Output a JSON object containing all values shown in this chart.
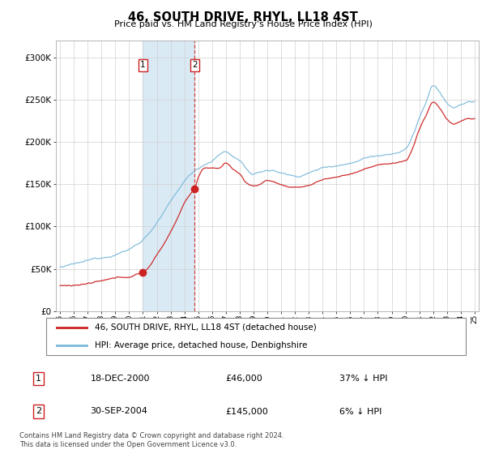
{
  "title": "46, SOUTH DRIVE, RHYL, LL18 4ST",
  "subtitle": "Price paid vs. HM Land Registry's House Price Index (HPI)",
  "legend_line1": "46, SOUTH DRIVE, RHYL, LL18 4ST (detached house)",
  "legend_line2": "HPI: Average price, detached house, Denbighshire",
  "transaction1_label": "1",
  "transaction1_date": "18-DEC-2000",
  "transaction1_price": "£46,000",
  "transaction1_hpi": "37% ↓ HPI",
  "transaction2_label": "2",
  "transaction2_date": "30-SEP-2004",
  "transaction2_price": "£145,000",
  "transaction2_hpi": "6% ↓ HPI",
  "footer": "Contains HM Land Registry data © Crown copyright and database right 2024.\nThis data is licensed under the Open Government Licence v3.0.",
  "hpi_color": "#7ab8d9",
  "price_color": "#cc2222",
  "highlight_color": "#daeaf5",
  "vline_color": "#cc2222",
  "label_box_color": "#cc2222",
  "background_color": "#ffffff",
  "grid_color": "#cccccc",
  "ylim": [
    0,
    320000
  ],
  "yticks": [
    0,
    50000,
    100000,
    150000,
    200000,
    250000,
    300000
  ],
  "ytick_labels": [
    "£0",
    "£50K",
    "£100K",
    "£150K",
    "£200K",
    "£250K",
    "£300K"
  ],
  "transaction1_x": 2001.0,
  "transaction1_y": 46000,
  "transaction2_x": 2004.75,
  "transaction2_y": 145000,
  "xmin": 1995,
  "xmax": 2025
}
